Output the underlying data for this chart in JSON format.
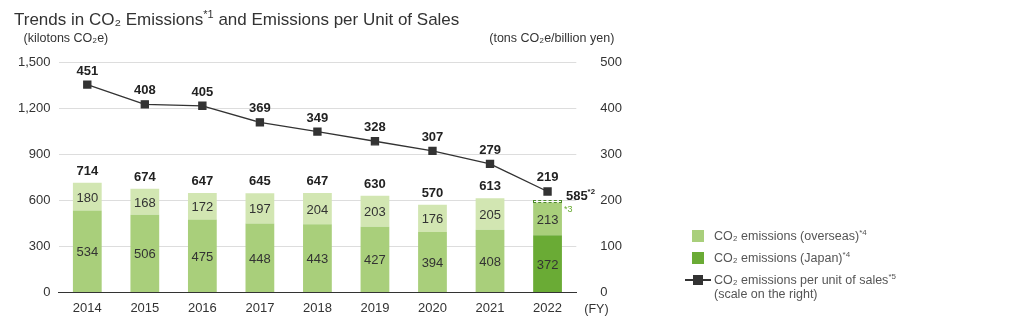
{
  "chart_data": {
    "type": "bar",
    "title": "Trends in CO₂ Emissions$^{*1}$ and Emissions per Unit of Sales",
    "ylabel": "(kilotons CO₂e)",
    "y2label": "(tons CO₂e/billion yen)",
    "xlabel": "(FY)",
    "categories": [
      "2014",
      "2015",
      "2016",
      "2017",
      "2018",
      "2019",
      "2020",
      "2021",
      "2022"
    ],
    "stacked": true,
    "series": [
      {
        "name": "CO₂ emissions (Japan)$^{*4}$",
        "color": "#6aab35",
        "colors": [
          "#a9cf7b",
          "#a9cf7b",
          "#a9cf7b",
          "#a9cf7b",
          "#a9cf7b",
          "#a9cf7b",
          "#a9cf7b",
          "#a9cf7b",
          "#6aab35"
        ],
        "values": [
          534,
          506,
          475,
          448,
          443,
          427,
          394,
          408,
          372
        ]
      },
      {
        "name": "CO₂ emissions (overseas)$^{*4}$",
        "color": "#a9cf7b",
        "colors": [
          "#d2e6b2",
          "#d2e6b2",
          "#d2e6b2",
          "#d2e6b2",
          "#d2e6b2",
          "#d2e6b2",
          "#d2e6b2",
          "#d2e6b2",
          "#a9cf7b"
        ],
        "values": [
          180,
          168,
          172,
          197,
          204,
          203,
          176,
          205,
          213
        ]
      },
      {
        "name": "CO₂ emissions per unit of sales$^{*5}$ (scale on the right)",
        "type": "line",
        "axis": "y2",
        "color": "#333333",
        "values": [
          451,
          408,
          405,
          369,
          349,
          328,
          307,
          279,
          219
        ]
      }
    ],
    "totals": [
      "714",
      "674",
      "647",
      "645",
      "647",
      "630",
      "570",
      "613",
      "585$^{*2}$"
    ],
    "annotations": [
      {
        "text": "*3",
        "x": "2022",
        "y": 600
      }
    ],
    "ylim": [
      0,
      1500
    ],
    "yticks": [
      0,
      {
        "value": 300,
        "label": "300"
      },
      {
        "value": 600,
        "label": "600"
      },
      {
        "value": 900,
        "label": "900"
      },
      {
        "value": 1200,
        "label": "1,200"
      },
      {
        "value": 1500,
        "label": "1,500"
      }
    ],
    "y2lim": [
      0,
      500
    ],
    "y2ticks": [
      0,
      100,
      200,
      300,
      400,
      500
    ],
    "grid": "y",
    "legend": "right",
    "marker": "square",
    "line_style": "solid",
    "data_labels": true
  }
}
